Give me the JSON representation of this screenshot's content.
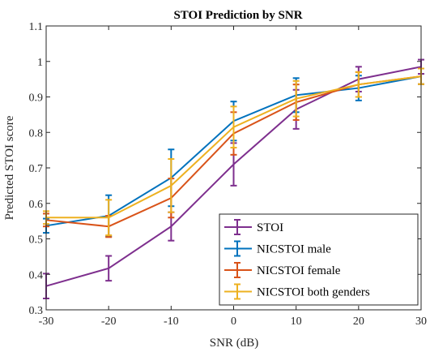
{
  "chart_data": {
    "type": "line",
    "title": "STOI Prediction by SNR",
    "xlabel": "SNR (dB)",
    "ylabel": "Predicted STOI score",
    "x": [
      -30,
      -20,
      -10,
      0,
      10,
      20,
      30
    ],
    "xlim": [
      -30,
      30
    ],
    "ylim": [
      0.3,
      1.1
    ],
    "xticks": [
      -30,
      -20,
      -10,
      0,
      10,
      20,
      30
    ],
    "yticks": [
      0.3,
      0.4,
      0.5,
      0.6,
      0.7,
      0.8,
      0.9,
      1,
      1.1
    ],
    "legend_position": "bottom-right",
    "series": [
      {
        "name": "STOI",
        "color": "#7E2F8E",
        "values": [
          0.367,
          0.417,
          0.535,
          0.71,
          0.865,
          0.95,
          0.985
        ],
        "errors": [
          0.035,
          0.035,
          0.04,
          0.06,
          0.055,
          0.035,
          0.02
        ]
      },
      {
        "name": "NICSTOI male",
        "color": "#0072BD",
        "values": [
          0.537,
          0.565,
          0.672,
          0.832,
          0.905,
          0.925,
          0.958
        ],
        "errors": [
          0.02,
          0.058,
          0.08,
          0.055,
          0.048,
          0.035,
          0.022
        ]
      },
      {
        "name": "NICSTOI female",
        "color": "#D95319",
        "values": [
          0.553,
          0.535,
          0.615,
          0.797,
          0.885,
          0.935,
          0.958
        ],
        "errors": [
          0.018,
          0.03,
          0.055,
          0.06,
          0.05,
          0.035,
          0.022
        ]
      },
      {
        "name": "NICSTOI both genders",
        "color": "#EDB120",
        "values": [
          0.56,
          0.56,
          0.65,
          0.815,
          0.895,
          0.935,
          0.958
        ],
        "errors": [
          0.018,
          0.05,
          0.075,
          0.058,
          0.05,
          0.035,
          0.022
        ]
      }
    ]
  }
}
